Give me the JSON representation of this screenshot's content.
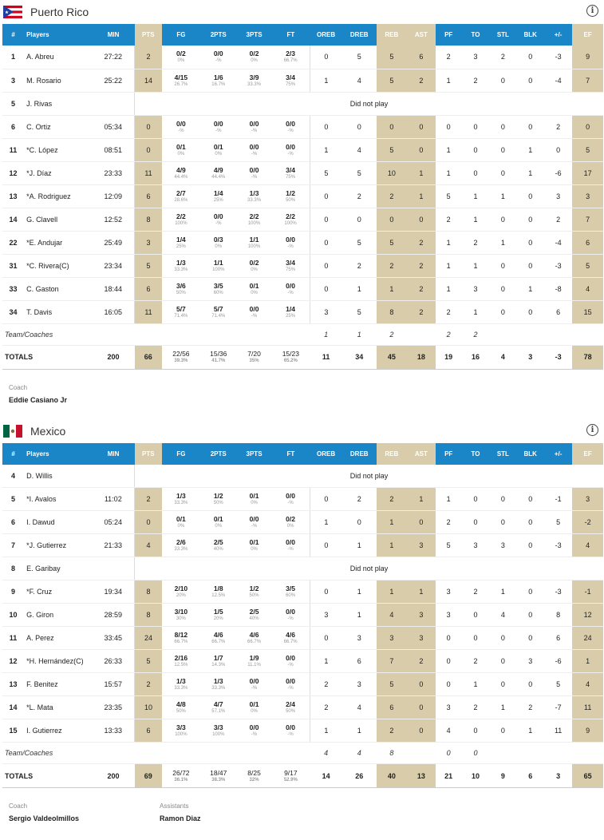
{
  "teams": [
    {
      "name": "Puerto Rico",
      "flag": "puerto-rico-flag",
      "headers": [
        "#",
        "Players",
        "MIN",
        "PTS",
        "FG",
        "2PTS",
        "3PTS",
        "FT",
        "OREB",
        "DREB",
        "REB",
        "AST",
        "PF",
        "TO",
        "STL",
        "BLK",
        "+/-",
        "EF"
      ],
      "players": [
        {
          "no": "1",
          "name": "A. Abreu",
          "min": "27:22",
          "pts": "2",
          "fg": [
            "0/2",
            "0%"
          ],
          "p2": [
            "0/0",
            "-%"
          ],
          "p3": [
            "0/2",
            "0%"
          ],
          "ft": [
            "2/3",
            "66.7%"
          ],
          "oreb": "0",
          "dreb": "5",
          "reb": "5",
          "ast": "6",
          "pf": "2",
          "to": "3",
          "stl": "2",
          "blk": "0",
          "pm": "-3",
          "ef": "9"
        },
        {
          "no": "3",
          "name": "M. Rosario",
          "min": "25:22",
          "pts": "14",
          "fg": [
            "4/15",
            "26.7%"
          ],
          "p2": [
            "1/6",
            "16.7%"
          ],
          "p3": [
            "3/9",
            "33.3%"
          ],
          "ft": [
            "3/4",
            "75%"
          ],
          "oreb": "1",
          "dreb": "4",
          "reb": "5",
          "ast": "2",
          "pf": "1",
          "to": "2",
          "stl": "0",
          "blk": "0",
          "pm": "-4",
          "ef": "7"
        },
        {
          "no": "5",
          "name": "J. Rivas",
          "dnp": "Did not play"
        },
        {
          "no": "6",
          "name": "C. Ortiz",
          "min": "05:34",
          "pts": "0",
          "fg": [
            "0/0",
            "-%"
          ],
          "p2": [
            "0/0",
            "-%"
          ],
          "p3": [
            "0/0",
            "-%"
          ],
          "ft": [
            "0/0",
            "-%"
          ],
          "oreb": "0",
          "dreb": "0",
          "reb": "0",
          "ast": "0",
          "pf": "0",
          "to": "0",
          "stl": "0",
          "blk": "0",
          "pm": "2",
          "ef": "0"
        },
        {
          "no": "11",
          "name": "*C. López",
          "min": "08:51",
          "pts": "0",
          "fg": [
            "0/1",
            "0%"
          ],
          "p2": [
            "0/1",
            "0%"
          ],
          "p3": [
            "0/0",
            "-%"
          ],
          "ft": [
            "0/0",
            "-%"
          ],
          "oreb": "1",
          "dreb": "4",
          "reb": "5",
          "ast": "0",
          "pf": "1",
          "to": "0",
          "stl": "0",
          "blk": "1",
          "pm": "0",
          "ef": "5"
        },
        {
          "no": "12",
          "name": "*J. Díaz",
          "min": "23:33",
          "pts": "11",
          "fg": [
            "4/9",
            "44.4%"
          ],
          "p2": [
            "4/9",
            "44.4%"
          ],
          "p3": [
            "0/0",
            "-%"
          ],
          "ft": [
            "3/4",
            "75%"
          ],
          "oreb": "5",
          "dreb": "5",
          "reb": "10",
          "ast": "1",
          "pf": "1",
          "to": "0",
          "stl": "0",
          "blk": "1",
          "pm": "-6",
          "ef": "17"
        },
        {
          "no": "13",
          "name": "*A. Rodriguez",
          "min": "12:09",
          "pts": "6",
          "fg": [
            "2/7",
            "28.6%"
          ],
          "p2": [
            "1/4",
            "25%"
          ],
          "p3": [
            "1/3",
            "33.3%"
          ],
          "ft": [
            "1/2",
            "50%"
          ],
          "oreb": "0",
          "dreb": "2",
          "reb": "2",
          "ast": "1",
          "pf": "5",
          "to": "1",
          "stl": "1",
          "blk": "0",
          "pm": "3",
          "ef": "3"
        },
        {
          "no": "14",
          "name": "G. Clavell",
          "min": "12:52",
          "pts": "8",
          "fg": [
            "2/2",
            "100%"
          ],
          "p2": [
            "0/0",
            "-%"
          ],
          "p3": [
            "2/2",
            "100%"
          ],
          "ft": [
            "2/2",
            "100%"
          ],
          "oreb": "0",
          "dreb": "0",
          "reb": "0",
          "ast": "0",
          "pf": "2",
          "to": "1",
          "stl": "0",
          "blk": "0",
          "pm": "2",
          "ef": "7"
        },
        {
          "no": "22",
          "name": "*E. Andujar",
          "min": "25:49",
          "pts": "3",
          "fg": [
            "1/4",
            "25%"
          ],
          "p2": [
            "0/3",
            "0%"
          ],
          "p3": [
            "1/1",
            "100%"
          ],
          "ft": [
            "0/0",
            "-%"
          ],
          "oreb": "0",
          "dreb": "5",
          "reb": "5",
          "ast": "2",
          "pf": "1",
          "to": "2",
          "stl": "1",
          "blk": "0",
          "pm": "-4",
          "ef": "6"
        },
        {
          "no": "31",
          "name": "*C. Rivera(C)",
          "min": "23:34",
          "pts": "5",
          "fg": [
            "1/3",
            "33.3%"
          ],
          "p2": [
            "1/1",
            "100%"
          ],
          "p3": [
            "0/2",
            "0%"
          ],
          "ft": [
            "3/4",
            "75%"
          ],
          "oreb": "0",
          "dreb": "2",
          "reb": "2",
          "ast": "2",
          "pf": "1",
          "to": "1",
          "stl": "0",
          "blk": "0",
          "pm": "-3",
          "ef": "5"
        },
        {
          "no": "33",
          "name": "C. Gaston",
          "min": "18:44",
          "pts": "6",
          "fg": [
            "3/6",
            "50%"
          ],
          "p2": [
            "3/5",
            "60%"
          ],
          "p3": [
            "0/1",
            "0%"
          ],
          "ft": [
            "0/0",
            "-%"
          ],
          "oreb": "0",
          "dreb": "1",
          "reb": "1",
          "ast": "2",
          "pf": "1",
          "to": "3",
          "stl": "0",
          "blk": "1",
          "pm": "-8",
          "ef": "4"
        },
        {
          "no": "34",
          "name": "T. Davis",
          "min": "16:05",
          "pts": "11",
          "fg": [
            "5/7",
            "71.4%"
          ],
          "p2": [
            "5/7",
            "71.4%"
          ],
          "p3": [
            "0/0",
            "-%"
          ],
          "ft": [
            "1/4",
            "25%"
          ],
          "oreb": "3",
          "dreb": "5",
          "reb": "8",
          "ast": "2",
          "pf": "2",
          "to": "1",
          "stl": "0",
          "blk": "0",
          "pm": "6",
          "ef": "15"
        }
      ],
      "team_row": {
        "label": "Team/Coaches",
        "oreb": "1",
        "dreb": "1",
        "reb": "2",
        "ast": "",
        "pf": "2",
        "to": "2"
      },
      "totals": {
        "label": "TOTALS",
        "min": "200",
        "pts": "66",
        "fg": [
          "22/56",
          "39.3%"
        ],
        "p2": [
          "15/36",
          "41.7%"
        ],
        "p3": [
          "7/20",
          "35%"
        ],
        "ft": [
          "15/23",
          "65.2%"
        ],
        "oreb": "11",
        "dreb": "34",
        "reb": "45",
        "ast": "18",
        "pf": "19",
        "to": "16",
        "stl": "4",
        "blk": "3",
        "pm": "-3",
        "ef": "78"
      },
      "coach_label": "Coach",
      "coach": "Eddie Casiano Jr",
      "assistants_label": "",
      "assistants": ""
    },
    {
      "name": "Mexico",
      "flag": "mexico-flag",
      "headers": [
        "#",
        "Players",
        "MIN",
        "PTS",
        "FG",
        "2PTS",
        "3PTS",
        "FT",
        "OREB",
        "DREB",
        "REB",
        "AST",
        "PF",
        "TO",
        "STL",
        "BLK",
        "+/-",
        "EF"
      ],
      "players": [
        {
          "no": "4",
          "name": "D. Willis",
          "dnp": "Did not play"
        },
        {
          "no": "5",
          "name": "*I. Avalos",
          "min": "11:02",
          "pts": "2",
          "fg": [
            "1/3",
            "33.3%"
          ],
          "p2": [
            "1/2",
            "50%"
          ],
          "p3": [
            "0/1",
            "0%"
          ],
          "ft": [
            "0/0",
            "-%"
          ],
          "oreb": "0",
          "dreb": "2",
          "reb": "2",
          "ast": "1",
          "pf": "1",
          "to": "0",
          "stl": "0",
          "blk": "0",
          "pm": "-1",
          "ef": "3"
        },
        {
          "no": "6",
          "name": "I. Dawud",
          "min": "05:24",
          "pts": "0",
          "fg": [
            "0/1",
            "0%"
          ],
          "p2": [
            "0/1",
            "0%"
          ],
          "p3": [
            "0/0",
            "-%"
          ],
          "ft": [
            "0/2",
            "0%"
          ],
          "oreb": "1",
          "dreb": "0",
          "reb": "1",
          "ast": "0",
          "pf": "2",
          "to": "0",
          "stl": "0",
          "blk": "0",
          "pm": "5",
          "ef": "-2"
        },
        {
          "no": "7",
          "name": "*J. Gutierrez",
          "min": "21:33",
          "pts": "4",
          "fg": [
            "2/6",
            "33.3%"
          ],
          "p2": [
            "2/5",
            "40%"
          ],
          "p3": [
            "0/1",
            "0%"
          ],
          "ft": [
            "0/0",
            "-%"
          ],
          "oreb": "0",
          "dreb": "1",
          "reb": "1",
          "ast": "3",
          "pf": "5",
          "to": "3",
          "stl": "3",
          "blk": "0",
          "pm": "-3",
          "ef": "4"
        },
        {
          "no": "8",
          "name": "E. Garibay",
          "dnp": "Did not play"
        },
        {
          "no": "9",
          "name": "*F. Cruz",
          "min": "19:34",
          "pts": "8",
          "fg": [
            "2/10",
            "20%"
          ],
          "p2": [
            "1/8",
            "12.5%"
          ],
          "p3": [
            "1/2",
            "50%"
          ],
          "ft": [
            "3/5",
            "60%"
          ],
          "oreb": "0",
          "dreb": "1",
          "reb": "1",
          "ast": "1",
          "pf": "3",
          "to": "2",
          "stl": "1",
          "blk": "0",
          "pm": "-3",
          "ef": "-1"
        },
        {
          "no": "10",
          "name": "G. Giron",
          "min": "28:59",
          "pts": "8",
          "fg": [
            "3/10",
            "30%"
          ],
          "p2": [
            "1/5",
            "20%"
          ],
          "p3": [
            "2/5",
            "40%"
          ],
          "ft": [
            "0/0",
            "-%"
          ],
          "oreb": "3",
          "dreb": "1",
          "reb": "4",
          "ast": "3",
          "pf": "3",
          "to": "0",
          "stl": "4",
          "blk": "0",
          "pm": "8",
          "ef": "12"
        },
        {
          "no": "11",
          "name": "A. Perez",
          "min": "33:45",
          "pts": "24",
          "fg": [
            "8/12",
            "66.7%"
          ],
          "p2": [
            "4/6",
            "66.7%"
          ],
          "p3": [
            "4/6",
            "66.7%"
          ],
          "ft": [
            "4/6",
            "66.7%"
          ],
          "oreb": "0",
          "dreb": "3",
          "reb": "3",
          "ast": "3",
          "pf": "0",
          "to": "0",
          "stl": "0",
          "blk": "0",
          "pm": "6",
          "ef": "24"
        },
        {
          "no": "12",
          "name": "*H. Hernández(C)",
          "min": "26:33",
          "pts": "5",
          "fg": [
            "2/16",
            "12.5%"
          ],
          "p2": [
            "1/7",
            "14.3%"
          ],
          "p3": [
            "1/9",
            "11.1%"
          ],
          "ft": [
            "0/0",
            "-%"
          ],
          "oreb": "1",
          "dreb": "6",
          "reb": "7",
          "ast": "2",
          "pf": "0",
          "to": "2",
          "stl": "0",
          "blk": "3",
          "pm": "-6",
          "ef": "1"
        },
        {
          "no": "13",
          "name": "F. Benitez",
          "min": "15:57",
          "pts": "2",
          "fg": [
            "1/3",
            "33.3%"
          ],
          "p2": [
            "1/3",
            "33.3%"
          ],
          "p3": [
            "0/0",
            "-%"
          ],
          "ft": [
            "0/0",
            "-%"
          ],
          "oreb": "2",
          "dreb": "3",
          "reb": "5",
          "ast": "0",
          "pf": "0",
          "to": "1",
          "stl": "0",
          "blk": "0",
          "pm": "5",
          "ef": "4"
        },
        {
          "no": "14",
          "name": "*L. Mata",
          "min": "23:35",
          "pts": "10",
          "fg": [
            "4/8",
            "50%"
          ],
          "p2": [
            "4/7",
            "57.1%"
          ],
          "p3": [
            "0/1",
            "0%"
          ],
          "ft": [
            "2/4",
            "50%"
          ],
          "oreb": "2",
          "dreb": "4",
          "reb": "6",
          "ast": "0",
          "pf": "3",
          "to": "2",
          "stl": "1",
          "blk": "2",
          "pm": "-7",
          "ef": "11"
        },
        {
          "no": "15",
          "name": "I. Gutierrez",
          "min": "13:33",
          "pts": "6",
          "fg": [
            "3/3",
            "100%"
          ],
          "p2": [
            "3/3",
            "100%"
          ],
          "p3": [
            "0/0",
            "-%"
          ],
          "ft": [
            "0/0",
            "-%"
          ],
          "oreb": "1",
          "dreb": "1",
          "reb": "2",
          "ast": "0",
          "pf": "4",
          "to": "0",
          "stl": "0",
          "blk": "1",
          "pm": "11",
          "ef": "9"
        }
      ],
      "team_row": {
        "label": "Team/Coaches",
        "oreb": "4",
        "dreb": "4",
        "reb": "8",
        "ast": "",
        "pf": "0",
        "to": "0"
      },
      "totals": {
        "label": "TOTALS",
        "min": "200",
        "pts": "69",
        "fg": [
          "26/72",
          "36.1%"
        ],
        "p2": [
          "18/47",
          "38.3%"
        ],
        "p3": [
          "8/25",
          "32%"
        ],
        "ft": [
          "9/17",
          "52.9%"
        ],
        "oreb": "14",
        "dreb": "26",
        "reb": "40",
        "ast": "13",
        "pf": "21",
        "to": "10",
        "stl": "9",
        "blk": "6",
        "pm": "3",
        "ef": "65"
      },
      "coach_label": "Coach",
      "coach": "Sergio Valdeolmillos",
      "assistants_label": "Assistants",
      "assistants": "Ramon Diaz"
    }
  ],
  "colors": {
    "header_blue": "#1a86c8",
    "highlight_tan": "#d8ccaa"
  }
}
